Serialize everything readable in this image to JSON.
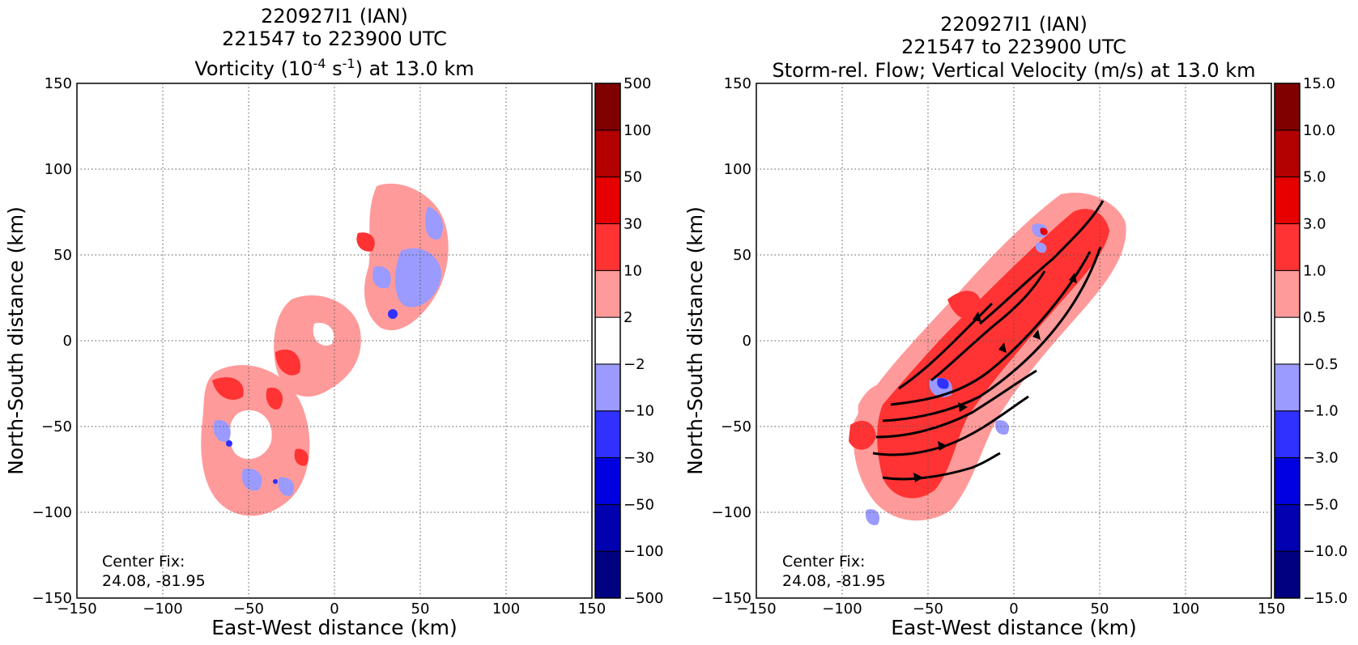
{
  "chart_data": [
    {
      "type": "heatmap",
      "title_lines": [
        "220927I1 (IAN)",
        "221547 to 223900 UTC"
      ],
      "title_var_prefix": "Vorticity (10",
      "title_var_exp1": "-4",
      "title_var_mid": " s",
      "title_var_exp2": "-1",
      "title_var_suffix": ") at 13.0 km",
      "xlabel": "East-West distance (km)",
      "ylabel": "North-South distance (km)",
      "xlim": [
        -150,
        150
      ],
      "ylim": [
        -150,
        150
      ],
      "xticks": [
        "−150",
        "−100",
        "−50",
        "0",
        "50",
        "100",
        "150"
      ],
      "yticks": [
        "−150",
        "−100",
        "−50",
        "0",
        "50",
        "100",
        "150"
      ],
      "grid": true,
      "annotation_line1": "Center Fix:",
      "annotation_line2": "24.08, -81.95",
      "colorbar": {
        "levels": [
          "−500",
          "−100",
          "−50",
          "−30",
          "−10",
          "−2",
          "2",
          "10",
          "30",
          "50",
          "100",
          "500"
        ],
        "colors": [
          "#000080",
          "#0000b0",
          "#0000e0",
          "#3030ff",
          "#9a9aff",
          "#ffffff",
          "#ff9a9a",
          "#ff3333",
          "#e60000",
          "#b30000",
          "#800000"
        ]
      }
    },
    {
      "type": "heatmap",
      "title_lines": [
        "220927I1 (IAN)",
        "221547 to 223900 UTC",
        "Storm-rel. Flow; Vertical Velocity (m/s) at 13.0 km"
      ],
      "xlabel": "East-West distance (km)",
      "ylabel": "North-South distance (km)",
      "xlim": [
        -150,
        150
      ],
      "ylim": [
        -150,
        150
      ],
      "xticks": [
        "−150",
        "−100",
        "−50",
        "0",
        "50",
        "100",
        "150"
      ],
      "yticks": [
        "−150",
        "−100",
        "−50",
        "0",
        "50",
        "100",
        "150"
      ],
      "grid": true,
      "annotation_line1": "Center Fix:",
      "annotation_line2": "24.08, -81.95",
      "colorbar": {
        "levels": [
          "−15.0",
          "−10.0",
          "−5.0",
          "−3.0",
          "−1.0",
          "−0.5",
          "0.5",
          "1.0",
          "3.0",
          "5.0",
          "10.0",
          "15.0"
        ],
        "colors": [
          "#000080",
          "#0000b0",
          "#0000e0",
          "#3030ff",
          "#9a9aff",
          "#ffffff",
          "#ff9a9a",
          "#ff3333",
          "#e60000",
          "#b30000",
          "#800000"
        ]
      }
    }
  ]
}
